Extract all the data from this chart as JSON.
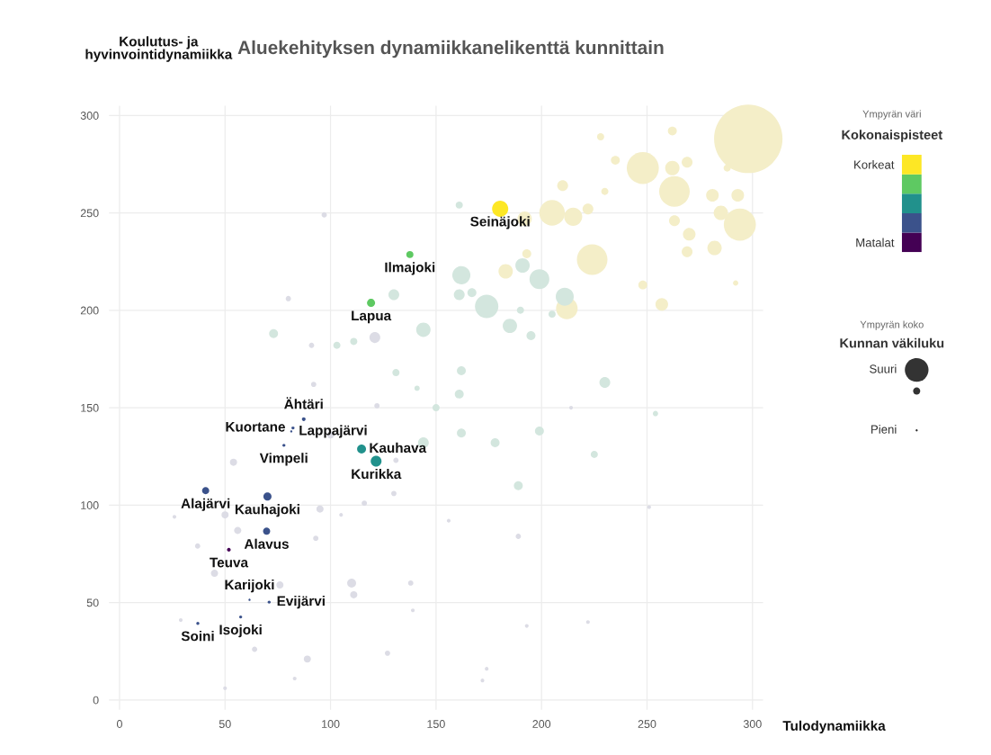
{
  "chart_data": {
    "type": "bubble",
    "title": "Aluekehityksen dynamiikkanelikenttä kunnittain",
    "xlabel": "Tulodynamiikka",
    "ylabel": "Koulutus- ja\nhyvinvointidynamiikka",
    "clabel": "Kokonaispisteet",
    "legend_title": "Kunnan väkiluku",
    "xlim": [
      -5,
      305
    ],
    "ylim": [
      -5,
      305
    ],
    "xticks": [
      0,
      50,
      100,
      150,
      200,
      250,
      300
    ],
    "yticks": [
      0,
      50,
      100,
      150,
      200,
      250,
      300
    ],
    "grid": true,
    "clim": [
      0.5,
      5.5
    ],
    "cticks": [
      {
        "value": 5,
        "label": "Korkeat"
      },
      {
        "value": 1,
        "label": "Matalat"
      }
    ],
    "size_legend": [
      {
        "value": 0.12,
        "label": "Suuri"
      },
      {
        "value": 0.001,
        "label": "Pieni"
      }
    ],
    "series": [
      {
        "color": "#f4eec8",
        "x": [
          298,
          248,
          263,
          294,
          224,
          205,
          215,
          192,
          212,
          183,
          281,
          293,
          285,
          282,
          270,
          269,
          263,
          269,
          262,
          262,
          228,
          235,
          210,
          222,
          257,
          248,
          292,
          288,
          193,
          230
        ],
        "values": [
          288,
          273,
          261,
          244,
          226,
          250,
          248,
          247,
          201,
          220,
          259,
          259,
          250,
          232,
          239,
          230,
          246,
          276,
          273,
          292,
          289,
          277,
          264,
          252,
          203,
          213,
          214,
          273,
          229,
          261
        ],
        "sizes": [
          1,
          0.22,
          0.2,
          0.22,
          0.2,
          0.14,
          0.07,
          0.044,
          0.1,
          0.044,
          0.034,
          0.034,
          0.044,
          0.044,
          0.034,
          0.025,
          0.025,
          0.025,
          0.044,
          0.017,
          0.011,
          0.017,
          0.025,
          0.025,
          0.034,
          0.017,
          0.006,
          0.011,
          0.017,
          0.011
        ]
      },
      {
        "color": "#d3e6de",
        "x": [
          162,
          174,
          191,
          199,
          211,
          185,
          195,
          161,
          167,
          162,
          230,
          205,
          190,
          161,
          144,
          130,
          161,
          131,
          111,
          103,
          162,
          144,
          178,
          199,
          189,
          225,
          150,
          141,
          73,
          254
        ],
        "values": [
          218,
          202,
          223,
          216,
          207,
          192,
          187,
          208,
          209,
          169,
          163,
          198,
          200,
          254,
          190,
          208,
          157,
          168,
          184,
          182,
          137,
          132,
          132,
          138,
          110,
          126,
          150,
          160,
          188,
          147
        ],
        "sizes": [
          0.07,
          0.117,
          0.044,
          0.084,
          0.069,
          0.044,
          0.017,
          0.025,
          0.017,
          0.017,
          0.025,
          0.011,
          0.011,
          0.011,
          0.044,
          0.025,
          0.017,
          0.011,
          0.011,
          0.011,
          0.017,
          0.025,
          0.017,
          0.017,
          0.017,
          0.011,
          0.011,
          0.006,
          0.017,
          0.006
        ]
      },
      {
        "color": "#dcdce5",
        "x": [
          121,
          97,
          80,
          91,
          92,
          54,
          50,
          56,
          95,
          93,
          45,
          37,
          76,
          110,
          111,
          89,
          127,
          64,
          130,
          116,
          122,
          100,
          131,
          138,
          189,
          156,
          214,
          251,
          26,
          29,
          50,
          83,
          139,
          105,
          193,
          222,
          172,
          174
        ],
        "values": [
          186,
          249,
          206,
          182,
          162,
          122,
          95,
          87,
          98,
          83,
          65,
          79,
          59,
          60,
          54,
          21,
          24,
          26,
          106,
          101,
          151,
          136,
          123,
          60,
          84,
          92,
          150,
          99,
          94,
          41,
          6,
          11,
          46,
          95,
          38,
          40,
          10,
          16
        ],
        "sizes": [
          0.025,
          0.006,
          0.006,
          0.006,
          0.006,
          0.011,
          0.011,
          0.011,
          0.011,
          0.006,
          0.011,
          0.006,
          0.011,
          0.017,
          0.011,
          0.011,
          0.006,
          0.006,
          0.006,
          0.006,
          0.006,
          0.011,
          0.006,
          0.006,
          0.006,
          0.003,
          0.003,
          0.003,
          0.003,
          0.003,
          0.003,
          0.003,
          0.003,
          0.003,
          0.003,
          0.003,
          0.003,
          0.003
        ]
      },
      {
        "x": [
          180.4,
          137.6,
          119.2,
          87.3,
          82.2,
          81.4,
          77.9,
          114.7,
          121.6,
          40.8,
          70.1,
          69.7,
          51.8,
          61.6,
          70.9,
          37.1,
          57.4
        ],
        "values": [
          252.1,
          228.6,
          203.8,
          144.1,
          139.6,
          137.8,
          130.7,
          128.8,
          122.5,
          107.4,
          104.4,
          86.6,
          77.1,
          51.4,
          50.2,
          39.3,
          42.6
        ],
        "sizes": [
          0.056,
          0.011,
          0.014,
          0.003,
          0.002,
          0.001,
          0.002,
          0.017,
          0.025,
          0.011,
          0.014,
          0.011,
          0.003,
          0.001,
          0.002,
          0.002,
          0.002
        ],
        "colors": [
          "#fde725",
          "#5ec962",
          "#5ec962",
          "#3b528b",
          "#3b528b",
          "#3b528b",
          "#3b528b",
          "#21918c",
          "#21918c",
          "#3b528b",
          "#3b528b",
          "#3b528b",
          "#440154",
          "#3b528b",
          "#3b528b",
          "#3b528b",
          "#3b528b"
        ]
      }
    ],
    "annotations": [
      "Ympyrän väri",
      "Ympyrän koko",
      {
        "text": "Seinäjoki",
        "x": 180.4,
        "y": 252.1
      },
      {
        "text": "Ilmajoki",
        "x": 137.6,
        "y": 228.6
      },
      {
        "text": "Lapua",
        "x": 119.2,
        "y": 203.8
      },
      {
        "text": "Ähtäri",
        "x": 87.3,
        "y": 144.1
      },
      {
        "text": "Kuortane",
        "x": 82.2,
        "y": 139.6
      },
      {
        "text": "Lappajärvi",
        "x": 81.4,
        "y": 137.8
      },
      {
        "text": "Vimpeli",
        "x": 77.9,
        "y": 130.7
      },
      {
        "text": "Kauhava",
        "x": 114.7,
        "y": 128.8
      },
      {
        "text": "Kurikka",
        "x": 121.6,
        "y": 122.5
      },
      {
        "text": "Alajärvi",
        "x": 40.8,
        "y": 107.4
      },
      {
        "text": "Kauhajoki",
        "x": 70.1,
        "y": 104.4
      },
      {
        "text": "Alavus",
        "x": 69.7,
        "y": 86.6
      },
      {
        "text": "Teuva",
        "x": 51.8,
        "y": 77.1
      },
      {
        "text": "Karijoki",
        "x": 61.6,
        "y": 51.4
      },
      {
        "text": "Evijärvi",
        "x": 70.9,
        "y": 50.2
      },
      {
        "text": "Soini",
        "x": 37.1,
        "y": 39.3
      },
      {
        "text": "Isojoki",
        "x": 57.4,
        "y": 42.6
      }
    ]
  }
}
